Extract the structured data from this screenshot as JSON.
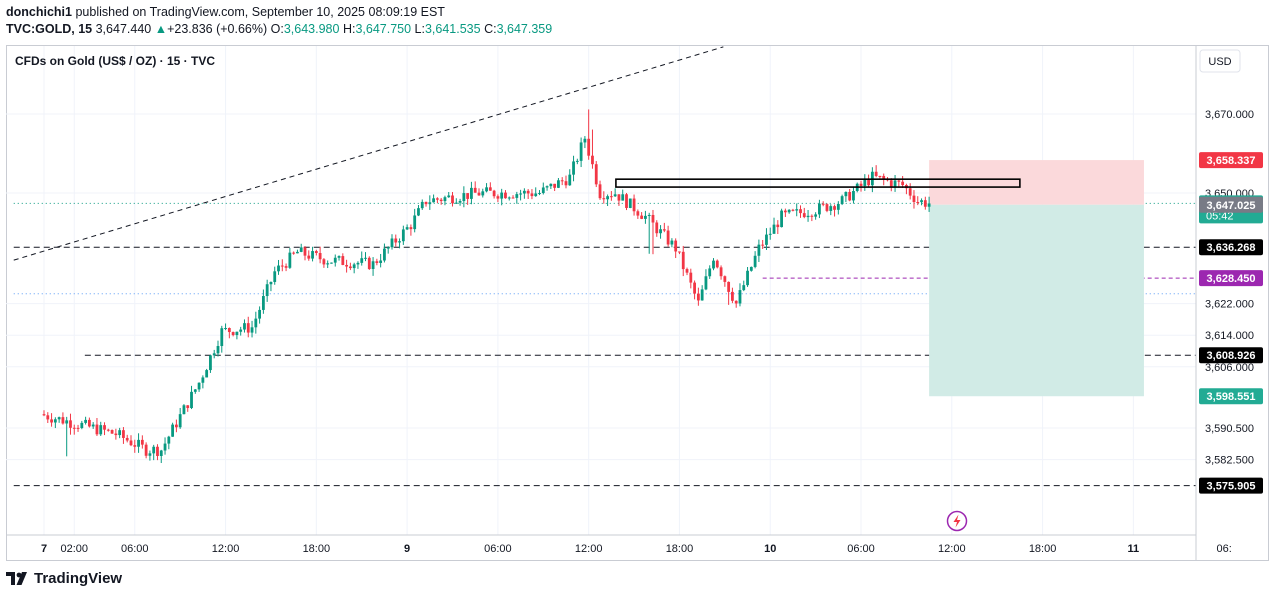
{
  "header": {
    "publisher": "donchichi1",
    "published_text": "published on TradingView.com, September 10, 2025 08:09:19 EST",
    "symbol": "TVC:GOLD, 15",
    "last": "3,647.440",
    "change": "+23.836 (+0.66%)",
    "open_label": "O:",
    "open": "3,643.980",
    "high_label": "H:",
    "high": "3,647.750",
    "low_label": "L:",
    "low": "3,641.535",
    "close_label": "C:",
    "close": "3,647.359"
  },
  "chart_title": "CFDs on Gold (US$ / OZ) · 15 · TVC",
  "currency": "USD",
  "footer_brand": "TradingView",
  "colors": {
    "up": "#089981",
    "down": "#f23645",
    "grid": "#f0f3fa",
    "axis_text": "#131722",
    "long_profit": "#d1ebe6",
    "long_loss": "#fbd9db"
  },
  "chart_data": {
    "type": "candlestick",
    "title": "CFDs on Gold (US$ / OZ) · 15 · TVC",
    "y_axis": {
      "ticks": [
        3670.0,
        3650.0,
        3622.0,
        3614.0,
        3606.0,
        3590.5,
        3582.5
      ],
      "tick_labels": [
        "3,670.000",
        "3,650.000",
        "3,622.000",
        "3,614.000",
        "3,606.000",
        "3,590.500",
        "3,582.500"
      ]
    },
    "x_axis": {
      "tick_labels": [
        "7",
        "02:00",
        "06:00",
        "12:00",
        "18:00",
        "9",
        "06:00",
        "12:00",
        "18:00",
        "10",
        "06:00",
        "12:00",
        "18:00",
        "11",
        "06:"
      ],
      "tick_times": [
        0,
        2,
        6,
        12,
        18,
        24,
        30,
        36,
        42,
        48,
        54,
        60,
        66,
        72,
        78
      ],
      "bold": [
        "7",
        "9",
        "10",
        "11"
      ]
    },
    "price_path": [
      [
        0,
        3594
      ],
      [
        2,
        3592
      ],
      [
        5,
        3589
      ],
      [
        7,
        3585
      ],
      [
        8,
        3585
      ],
      [
        10.5,
        3602
      ],
      [
        12,
        3615
      ],
      [
        14,
        3616
      ],
      [
        15.5,
        3630
      ],
      [
        17,
        3635
      ],
      [
        19,
        3633
      ],
      [
        22,
        3632
      ],
      [
        24.5,
        3642
      ],
      [
        25.5,
        3648
      ],
      [
        29,
        3650
      ],
      [
        31,
        3650
      ],
      [
        33,
        3650
      ],
      [
        35,
        3654
      ],
      [
        36,
        3664
      ],
      [
        37,
        3650
      ],
      [
        38,
        3650
      ],
      [
        40,
        3644
      ],
      [
        42,
        3636
      ],
      [
        43.5,
        3622
      ],
      [
        44.5,
        3634
      ],
      [
        46,
        3622
      ],
      [
        47.5,
        3636
      ],
      [
        49,
        3644
      ],
      [
        51.5,
        3646
      ],
      [
        53,
        3648
      ],
      [
        55,
        3654
      ],
      [
        57,
        3652
      ],
      [
        58,
        3648
      ],
      [
        58.7,
        3647.4
      ]
    ],
    "last_price": 3647.359,
    "price_labels": [
      {
        "value": 3658.337,
        "text": "3,658.337",
        "color": "#f23645"
      },
      {
        "value": 3647.359,
        "text": "3,647.359",
        "sub": "05:42",
        "color": "#22ab94"
      },
      {
        "value": 3647.025,
        "text": "3,647.025",
        "color": "#787b86"
      },
      {
        "value": 3636.268,
        "text": "3,636.268",
        "color": "#000000"
      },
      {
        "value": 3628.45,
        "text": "3,628.450",
        "color": "#9c27b0"
      },
      {
        "value": 3608.926,
        "text": "3,608.926",
        "color": "#000000"
      },
      {
        "value": 3598.551,
        "text": "3,598.551",
        "color": "#22ab94"
      },
      {
        "value": 3575.905,
        "text": "3,575.905",
        "color": "#000000"
      }
    ],
    "horizontal_lines": [
      {
        "value": 3636.268,
        "style": "dashed",
        "from_time": -2
      },
      {
        "value": 3608.926,
        "style": "dashed",
        "from_time": 2.7
      },
      {
        "value": 3575.905,
        "style": "dashed",
        "from_time": -2
      },
      {
        "value": 3624.5,
        "style": "dotted",
        "from_time": -2
      },
      {
        "value": 3647.359,
        "style": "dotted",
        "from_time": -2
      }
    ],
    "trend_line": {
      "from": [
        -2,
        3633
      ],
      "to": [
        44.9,
        3687
      ]
    },
    "rectangle": {
      "t1": 37.8,
      "t2": 64.5,
      "top": 3653.5,
      "bottom": 3651.5
    },
    "long_position": {
      "t1": 58.5,
      "t2": 72.7,
      "entry": 3647.025,
      "stop": 3658.337,
      "target": 3598.551
    },
    "target_marker": {
      "t1": 47.5,
      "t2": 74.5,
      "value": 3628.45
    }
  }
}
